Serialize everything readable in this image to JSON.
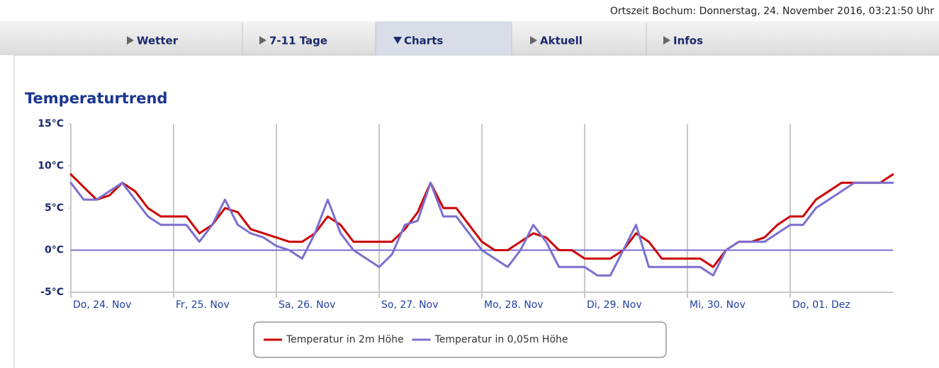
{
  "header": {
    "time": "Ortszeit Bochum: Donnerstag, 24. November 2016, 03:21:50 Uhr"
  },
  "tabs": [
    "Wetter",
    "7-11 Tage",
    "Charts",
    "Aktuell",
    "Infos"
  ],
  "active_tab": 2,
  "chart_data": {
    "type": "line",
    "title": "Temperaturtrend",
    "x": [
      0,
      3,
      6,
      9,
      12,
      15,
      18,
      21,
      24,
      27,
      30,
      33,
      36,
      39,
      42,
      45,
      48,
      51,
      54,
      57,
      60,
      63,
      66,
      69,
      72,
      75,
      78,
      81,
      84,
      87,
      90,
      93,
      96,
      99,
      102,
      105,
      108,
      111,
      114,
      117,
      120,
      123,
      126,
      129,
      132,
      135,
      138,
      141,
      144,
      147,
      150,
      153,
      156,
      159,
      162,
      165,
      168,
      171,
      174,
      177,
      180,
      183,
      186,
      189,
      192
    ],
    "series": [
      {
        "name": "Temperatur in 2m Höhe",
        "color": "#cc0000",
        "values": [
          9,
          7.5,
          6,
          6.5,
          8,
          7,
          5,
          4,
          4,
          4,
          2,
          3,
          5,
          4.5,
          2.5,
          2,
          1.5,
          1,
          1,
          2,
          4,
          3,
          1,
          1,
          1,
          1,
          2.5,
          4.5,
          8,
          5,
          5,
          3,
          1,
          0,
          0,
          1,
          2,
          1.5,
          0,
          0,
          -1,
          -1,
          -1,
          0,
          2,
          1,
          -1,
          -1,
          -1,
          -1,
          -2,
          0,
          1,
          1,
          1.5,
          3,
          4,
          4,
          6,
          7,
          8,
          8,
          8,
          8,
          9
        ]
      },
      {
        "name": "Temperatur in 0,05m Höhe",
        "color": "#7b6fd0",
        "values": [
          8,
          6,
          6,
          7,
          8,
          6,
          4,
          3,
          3,
          3,
          1,
          3,
          6,
          3,
          2,
          1.5,
          0.5,
          0,
          -1,
          2,
          6,
          2,
          0,
          -1,
          -2,
          -0.5,
          3,
          3.5,
          8,
          4,
          4,
          2,
          0,
          -1,
          -2,
          0,
          3,
          1,
          -2,
          -2,
          -2,
          -3,
          -3,
          0,
          3,
          -2,
          -2,
          -2,
          -2,
          -2,
          -3,
          0,
          1,
          1,
          1,
          2,
          3,
          3,
          5,
          6,
          7,
          8,
          8,
          8,
          8
        ]
      }
    ],
    "xlim": [
      0,
      192
    ],
    "xticks": [
      {
        "value": 0,
        "label": "Do, 24. Nov"
      },
      {
        "value": 24,
        "label": "Fr, 25. Nov"
      },
      {
        "value": 48,
        "label": "Sa, 26. Nov"
      },
      {
        "value": 72,
        "label": "So, 27. Nov"
      },
      {
        "value": 96,
        "label": "Mo, 28. Nov"
      },
      {
        "value": 120,
        "label": "Di, 29. Nov"
      },
      {
        "value": 144,
        "label": "Mi, 30. Nov"
      },
      {
        "value": 168,
        "label": "Do, 01. Dez"
      }
    ],
    "ylim": [
      -5,
      15
    ],
    "yticks": [
      {
        "value": -5,
        "label": "-5°C"
      },
      {
        "value": 0,
        "label": "0°C"
      },
      {
        "value": 5,
        "label": "5°C"
      },
      {
        "value": 10,
        "label": "10°C"
      },
      {
        "value": 15,
        "label": "15°C"
      }
    ],
    "legend": "bottom"
  }
}
